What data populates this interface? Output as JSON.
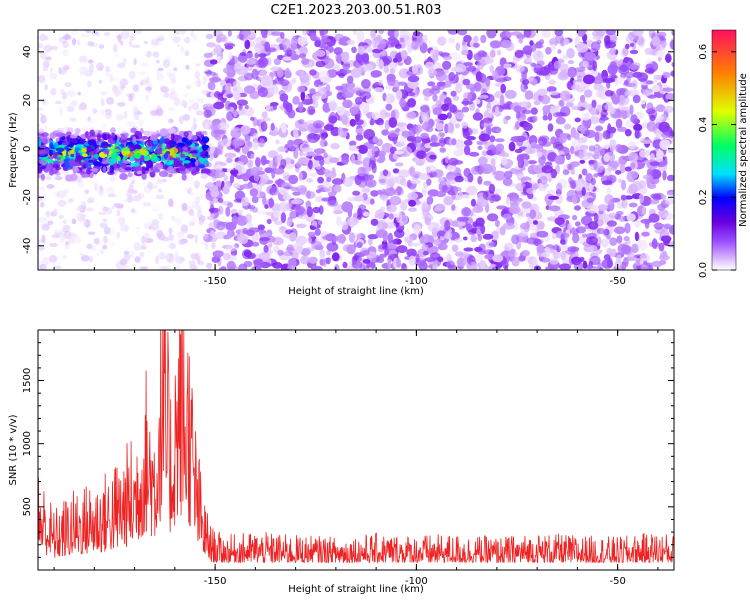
{
  "title": "C2E1.2023.203.00.51.R03",
  "colors": {
    "snr_line": "#ee2222",
    "spectrogram_noise": "#7a1fe0",
    "spectrogram_signal": "#19e6c0"
  },
  "chart_data": [
    {
      "type": "heatmap",
      "title": "",
      "xlabel": "Height of straight line (km)",
      "ylabel": "Frequency (Hz)",
      "xlim": [
        -194,
        -36
      ],
      "ylim": [
        -50,
        49
      ],
      "x_ticks": [
        -150,
        -100,
        -50
      ],
      "y_ticks": [
        -40,
        -20,
        0,
        20,
        40
      ],
      "colorbar": {
        "label": "Normalized spectral amplitude",
        "range": [
          0,
          0.66
        ],
        "ticks": [
          0.0,
          0.2,
          0.4,
          0.6
        ],
        "colormap": [
          "#ffffff",
          "#d8b4ff",
          "#9a4dff",
          "#6a00e0",
          "#0000ff",
          "#00e0ff",
          "#00ff60",
          "#e0ff00",
          "#ff8000",
          "#ff1060"
        ]
      },
      "regions": [
        {
          "x": [
            -194,
            -152
          ],
          "freq_band": [
            -10,
            6
          ],
          "level": 0.35
        },
        {
          "x": [
            -194,
            -152
          ],
          "freq_band": [
            -50,
            49
          ],
          "level": 0.05
        },
        {
          "x": [
            -152,
            -36
          ],
          "freq_band": [
            -50,
            49
          ],
          "level": 0.12
        }
      ]
    },
    {
      "type": "line",
      "title": "",
      "xlabel": "Height of straight line (km)",
      "ylabel": "SNR (10 * v/v)",
      "xlim": [
        -194,
        -36
      ],
      "ylim": [
        0,
        1900
      ],
      "x_ticks": [
        -150,
        -100,
        -50
      ],
      "y_ticks": [
        500,
        1000,
        1500
      ],
      "series": [
        {
          "x": [
            -194,
            -190,
            -186,
            -182,
            -178,
            -174,
            -170,
            -167,
            -165,
            -163,
            -161,
            -159,
            -157,
            -155,
            -153,
            -151,
            -148,
            -140,
            -130,
            -120,
            -110,
            -100,
            -90,
            -80,
            -70,
            -60,
            -50,
            -40,
            -36
          ],
          "values": [
            600,
            350,
            450,
            500,
            550,
            650,
            800,
            1200,
            950,
            1800,
            1100,
            1700,
            1650,
            900,
            450,
            250,
            200,
            220,
            200,
            190,
            210,
            200,
            205,
            190,
            210,
            200,
            190,
            220,
            200
          ]
        }
      ]
    }
  ]
}
